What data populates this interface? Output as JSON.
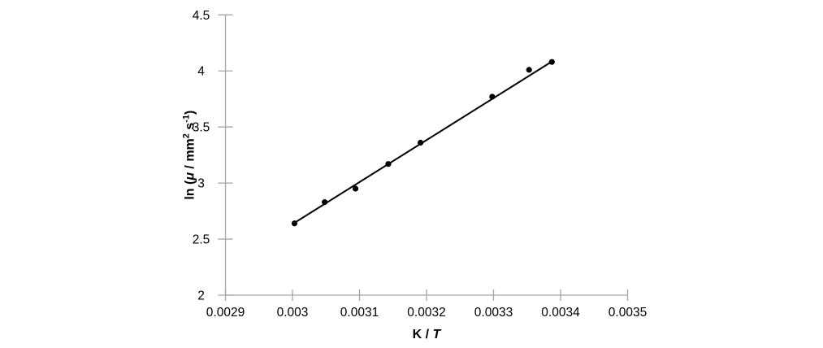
{
  "chart_data": {
    "type": "scatter",
    "title": "",
    "xlabel_parts": [
      {
        "text": "K / ",
        "italic": false
      },
      {
        "text": "T",
        "italic": true
      }
    ],
    "ylabel_parts": [
      {
        "text": "ln (",
        "italic": false
      },
      {
        "text": "μ",
        "italic": true
      },
      {
        "text": " / mm",
        "italic": false
      },
      {
        "text": "2",
        "sup": true
      },
      {
        "text": " s",
        "italic": false
      },
      {
        "text": "-1",
        "sup": true
      },
      {
        "text": ")",
        "italic": false
      }
    ],
    "xlim": [
      0.0029,
      0.0035
    ],
    "ylim": [
      2,
      4.5
    ],
    "x_ticks": [
      {
        "value": 0.0029,
        "label": "0.0029"
      },
      {
        "value": 0.003,
        "label": "0.003"
      },
      {
        "value": 0.0031,
        "label": "0.0031"
      },
      {
        "value": 0.0032,
        "label": "0.0032"
      },
      {
        "value": 0.0033,
        "label": "0.0033"
      },
      {
        "value": 0.0034,
        "label": "0.0034"
      },
      {
        "value": 0.0035,
        "label": "0.0035"
      }
    ],
    "y_ticks": [
      {
        "value": 2,
        "label": "2"
      },
      {
        "value": 2.5,
        "label": "2.5"
      },
      {
        "value": 3,
        "label": "3"
      },
      {
        "value": 3.5,
        "label": "3.5"
      },
      {
        "value": 4,
        "label": "4"
      },
      {
        "value": 4.5,
        "label": "4.5"
      }
    ],
    "points": [
      {
        "x": 0.003003,
        "y": 2.64
      },
      {
        "x": 0.003048,
        "y": 2.83
      },
      {
        "x": 0.003094,
        "y": 2.95
      },
      {
        "x": 0.003143,
        "y": 3.17
      },
      {
        "x": 0.003191,
        "y": 3.36
      },
      {
        "x": 0.003298,
        "y": 3.77
      },
      {
        "x": 0.003353,
        "y": 4.01
      },
      {
        "x": 0.003387,
        "y": 4.08
      }
    ],
    "trendline": {
      "x1": 0.003003,
      "y1": 2.645,
      "x2": 0.00339,
      "y2": 4.095
    },
    "grid": false,
    "legend": "none",
    "colors": {
      "point": "#000000",
      "trendline": "#000000",
      "axis": "#a6a6a6",
      "text": "#000000",
      "background": "#ffffff"
    }
  }
}
